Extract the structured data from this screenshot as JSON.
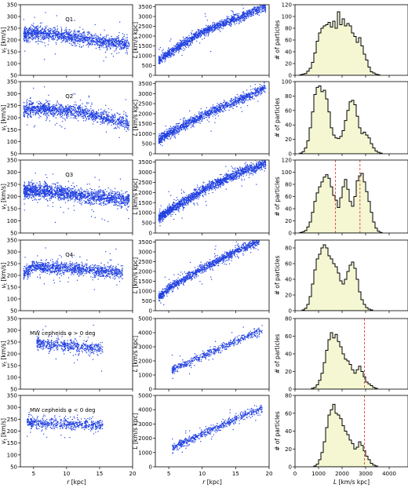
{
  "figure": {
    "columns": [
      {
        "xlabel": "r [kpc]",
        "ylabel": "v_t [km/s]"
      },
      {
        "xlabel": "r [kpc]",
        "ylabel": "L [km/s kpc]"
      },
      {
        "xlabel": "L [km/s kpc]",
        "ylabel": "# of particles"
      }
    ],
    "rows": [
      {
        "label": "Q1"
      },
      {
        "label": "Q2"
      },
      {
        "label": "Q3"
      },
      {
        "label": "Q4"
      },
      {
        "label": "MW cepheids φ > 0 deg"
      },
      {
        "label": "MW cepheids φ < 0 deg"
      }
    ]
  },
  "chart_data": [
    {
      "type": "scatter",
      "row": 0,
      "col": 0,
      "annotation": "Q1",
      "xlim": [
        3,
        20
      ],
      "ylim": [
        50,
        350
      ],
      "xticks": [
        5,
        10,
        15,
        20
      ],
      "yticks": [
        50,
        100,
        150,
        200,
        250,
        300,
        350
      ],
      "show_xticklabels": false,
      "ylabel": "v_t [km/s]",
      "color": "#1f3fe0",
      "trend": {
        "x": [
          3.5,
          5,
          8,
          12,
          16,
          19.5
        ],
        "y": [
          225,
          230,
          223,
          208,
          193,
          182
        ],
        "spread": 14,
        "n": 1400
      }
    },
    {
      "type": "scatter",
      "row": 0,
      "col": 1,
      "xlim": [
        3,
        20
      ],
      "ylim": [
        0,
        3600
      ],
      "yticks": [
        0,
        500,
        1000,
        1500,
        2000,
        2500,
        3000,
        3500
      ],
      "show_xticklabels": false,
      "ylabel": "L [km/s kpc]",
      "color": "#1f3fe0",
      "trend": {
        "x": [
          3.5,
          6,
          10,
          15,
          19.5
        ],
        "y": [
          750,
          1350,
          2200,
          2900,
          3480
        ],
        "spread": 110,
        "n": 1400
      }
    },
    {
      "type": "histogram",
      "row": 0,
      "col": 2,
      "xlim": [
        0,
        4800
      ],
      "ylim": [
        0,
        120
      ],
      "yticks": [
        0,
        20,
        40,
        60,
        80,
        100,
        120
      ],
      "show_xticklabels": false,
      "ylabel": "# of particles",
      "bin_start": 200,
      "bin_width": 100,
      "counts": [
        1,
        2,
        3,
        7,
        12,
        22,
        38,
        58,
        72,
        80,
        84,
        86,
        90,
        82,
        92,
        80,
        108,
        86,
        96,
        84,
        88,
        84,
        72,
        66,
        56,
        64,
        50,
        36,
        26,
        14,
        6,
        4,
        2,
        1
      ]
    },
    {
      "type": "scatter",
      "row": 1,
      "col": 0,
      "annotation": "Q2",
      "xlim": [
        3,
        20
      ],
      "ylim": [
        50,
        350
      ],
      "yticks": [
        50,
        100,
        150,
        200,
        250,
        300,
        350
      ],
      "show_xticklabels": false,
      "ylabel": "v_t [km/s]",
      "color": "#1f3fe0",
      "trend": {
        "x": [
          3.5,
          5,
          8,
          12,
          15,
          19.5
        ],
        "y": [
          225,
          238,
          232,
          228,
          205,
          175
        ],
        "spread": 14,
        "n": 1300
      }
    },
    {
      "type": "scatter",
      "row": 1,
      "col": 1,
      "xlim": [
        3,
        20
      ],
      "ylim": [
        0,
        3600
      ],
      "yticks": [
        0,
        500,
        1000,
        1500,
        2000,
        2500,
        3000,
        3500
      ],
      "show_xticklabels": false,
      "ylabel": "L [km/s kpc]",
      "color": "#1f3fe0",
      "trend": {
        "x": [
          3.5,
          6,
          10,
          15,
          19.5
        ],
        "y": [
          700,
          1200,
          1900,
          2600,
          3300
        ],
        "spread": 110,
        "n": 1300
      }
    },
    {
      "type": "histogram",
      "row": 1,
      "col": 2,
      "xlim": [
        0,
        4800
      ],
      "ylim": [
        0,
        100
      ],
      "yticks": [
        0,
        20,
        40,
        60,
        80,
        100
      ],
      "show_xticklabels": false,
      "ylabel": "# of particles",
      "bin_start": 200,
      "bin_width": 100,
      "counts": [
        1,
        3,
        8,
        18,
        36,
        58,
        82,
        92,
        94,
        86,
        88,
        76,
        58,
        36,
        26,
        22,
        21,
        24,
        32,
        46,
        60,
        72,
        74,
        68,
        52,
        36,
        28,
        30,
        26,
        22,
        14,
        8,
        4,
        2,
        1
      ]
    },
    {
      "type": "scatter",
      "row": 2,
      "col": 0,
      "annotation": "Q3",
      "xlim": [
        3,
        20
      ],
      "ylim": [
        50,
        350
      ],
      "yticks": [
        50,
        100,
        150,
        200,
        250,
        300,
        350
      ],
      "show_xticklabels": false,
      "ylabel": "v_t [km/s]",
      "color": "#1f3fe0",
      "trend": {
        "x": [
          3.5,
          6,
          10,
          14,
          19.5
        ],
        "y": [
          225,
          223,
          212,
          200,
          185
        ],
        "spread": 15,
        "n": 1700
      }
    },
    {
      "type": "scatter",
      "row": 2,
      "col": 1,
      "xlim": [
        3,
        20
      ],
      "ylim": [
        0,
        3600
      ],
      "yticks": [
        0,
        500,
        1000,
        1500,
        2000,
        2500,
        3000,
        3500
      ],
      "show_xticklabels": false,
      "ylabel": "L [km/s kpc]",
      "color": "#1f3fe0",
      "trend": {
        "x": [
          3.5,
          6,
          10,
          15,
          19.5
        ],
        "y": [
          750,
          1300,
          2100,
          2900,
          3450
        ],
        "spread": 120,
        "n": 1700
      }
    },
    {
      "type": "histogram",
      "row": 2,
      "col": 2,
      "xlim": [
        0,
        4800
      ],
      "ylim": [
        0,
        120
      ],
      "yticks": [
        0,
        20,
        40,
        60,
        80,
        100,
        120
      ],
      "show_xticklabels": false,
      "ylabel": "# of particles",
      "bin_start": 200,
      "bin_width": 100,
      "counts": [
        1,
        2,
        4,
        10,
        18,
        34,
        52,
        66,
        76,
        84,
        92,
        96,
        90,
        76,
        62,
        54,
        42,
        58,
        76,
        88,
        72,
        52,
        44,
        60,
        86,
        94,
        98,
        84,
        68,
        52,
        34,
        18,
        8,
        3,
        1
      ],
      "vlines": [
        1720,
        2760
      ]
    },
    {
      "type": "scatter",
      "row": 3,
      "col": 0,
      "annotation": "Q4",
      "xlim": [
        3,
        20
      ],
      "ylim": [
        50,
        350
      ],
      "yticks": [
        50,
        100,
        150,
        200,
        250,
        300,
        350
      ],
      "show_xticklabels": false,
      "ylabel": "v_t [km/s]",
      "color": "#1f3fe0",
      "trend": {
        "x": [
          3.5,
          5,
          8,
          12,
          16,
          18.5
        ],
        "y": [
          205,
          240,
          232,
          225,
          216,
          212
        ],
        "spread": 13,
        "n": 1200
      }
    },
    {
      "type": "scatter",
      "row": 3,
      "col": 1,
      "xlim": [
        3,
        20
      ],
      "ylim": [
        0,
        3600
      ],
      "yticks": [
        0,
        500,
        1000,
        1500,
        2000,
        2500,
        3000,
        3500
      ],
      "show_xticklabels": false,
      "ylabel": "L [km/s kpc]",
      "color": "#1f3fe0",
      "trend": {
        "x": [
          3.5,
          6,
          10,
          15,
          18.5
        ],
        "y": [
          700,
          1350,
          2150,
          3000,
          3550
        ],
        "spread": 110,
        "n": 1200
      }
    },
    {
      "type": "histogram",
      "row": 3,
      "col": 2,
      "xlim": [
        0,
        4800
      ],
      "ylim": [
        0,
        90
      ],
      "yticks": [
        0,
        20,
        40,
        60,
        80
      ],
      "show_xticklabels": false,
      "ylabel": "# of particles",
      "bin_start": 300,
      "bin_width": 100,
      "counts": [
        1,
        3,
        8,
        18,
        34,
        52,
        66,
        72,
        80,
        84,
        80,
        70,
        66,
        60,
        56,
        48,
        38,
        34,
        40,
        50,
        58,
        62,
        54,
        40,
        24,
        14,
        8,
        4,
        2,
        1
      ]
    },
    {
      "type": "scatter",
      "row": 4,
      "col": 0,
      "annotation": "MW cepheids φ > 0 deg",
      "xlim": [
        3,
        20
      ],
      "ylim": [
        50,
        350
      ],
      "yticks": [
        50,
        100,
        150,
        200,
        250,
        300,
        350
      ],
      "show_xticklabels": false,
      "ylabel": "v_t [km/s]",
      "color": "#1f3fe0",
      "trend": {
        "x": [
          5.5,
          8,
          12,
          15.5
        ],
        "y": [
          245,
          238,
          228,
          222
        ],
        "spread": 12,
        "n": 550
      }
    },
    {
      "type": "scatter",
      "row": 4,
      "col": 1,
      "xlim": [
        3,
        20
      ],
      "ylim": [
        0,
        5000
      ],
      "yticks": [
        0,
        1000,
        2000,
        3000,
        4000,
        5000
      ],
      "show_xticklabels": false,
      "ylabel": "L [km/s kpc]",
      "color": "#1f3fe0",
      "trend": {
        "x": [
          5.5,
          8,
          12,
          15.5,
          19
        ],
        "y": [
          1350,
          1900,
          2750,
          3500,
          4200
        ],
        "spread": 140,
        "n": 550
      }
    },
    {
      "type": "histogram",
      "row": 4,
      "col": 2,
      "xlim": [
        0,
        4800
      ],
      "ylim": [
        0,
        80
      ],
      "yticks": [
        0,
        20,
        40,
        60,
        80
      ],
      "show_xticklabels": false,
      "ylabel": "# of particles",
      "bin_start": 700,
      "bin_width": 100,
      "counts": [
        1,
        2,
        5,
        10,
        18,
        30,
        44,
        56,
        64,
        58,
        62,
        54,
        48,
        40,
        34,
        32,
        28,
        22,
        18,
        22,
        26,
        20,
        14,
        8,
        6,
        4,
        2,
        1
      ],
      "vlines": [
        2950
      ]
    },
    {
      "type": "scatter",
      "row": 5,
      "col": 0,
      "annotation": "MW cepheids φ < 0 deg",
      "xlim": [
        3,
        20
      ],
      "ylim": [
        50,
        350
      ],
      "xticks": [
        5,
        10,
        15,
        20
      ],
      "yticks": [
        50,
        100,
        150,
        200,
        250,
        300,
        350
      ],
      "show_xticklabels": true,
      "xlabel": "r [kpc]",
      "ylabel": "v_t [km/s]",
      "color": "#1f3fe0",
      "trend": {
        "x": [
          4,
          8,
          12,
          15.5
        ],
        "y": [
          235,
          232,
          228,
          222
        ],
        "spread": 11,
        "n": 600
      }
    },
    {
      "type": "scatter",
      "row": 5,
      "col": 1,
      "xlim": [
        3,
        20
      ],
      "ylim": [
        0,
        5000
      ],
      "xticks": [
        5,
        10,
        15,
        20
      ],
      "yticks": [
        0,
        1000,
        2000,
        3000,
        4000,
        5000
      ],
      "show_xticklabels": true,
      "xlabel": "r [kpc]",
      "ylabel": "L [km/s kpc]",
      "color": "#1f3fe0",
      "trend": {
        "x": [
          5.5,
          8,
          12,
          15.5,
          19
        ],
        "y": [
          1300,
          1850,
          2700,
          3450,
          4100
        ],
        "spread": 140,
        "n": 600
      }
    },
    {
      "type": "histogram",
      "row": 5,
      "col": 2,
      "xlim": [
        0,
        4800
      ],
      "ylim": [
        0,
        80
      ],
      "xticks": [
        0,
        1000,
        2000,
        3000,
        4000
      ],
      "yticks": [
        0,
        20,
        40,
        60,
        80
      ],
      "show_xticklabels": true,
      "xlabel": "L [km/s kpc]",
      "ylabel": "# of particles",
      "bin_start": 800,
      "bin_width": 100,
      "counts": [
        1,
        3,
        8,
        16,
        28,
        44,
        58,
        64,
        70,
        60,
        58,
        54,
        46,
        40,
        36,
        30,
        26,
        20,
        22,
        28,
        24,
        18,
        12,
        8,
        4,
        2,
        1
      ],
      "vlines": [
        2950
      ]
    }
  ]
}
